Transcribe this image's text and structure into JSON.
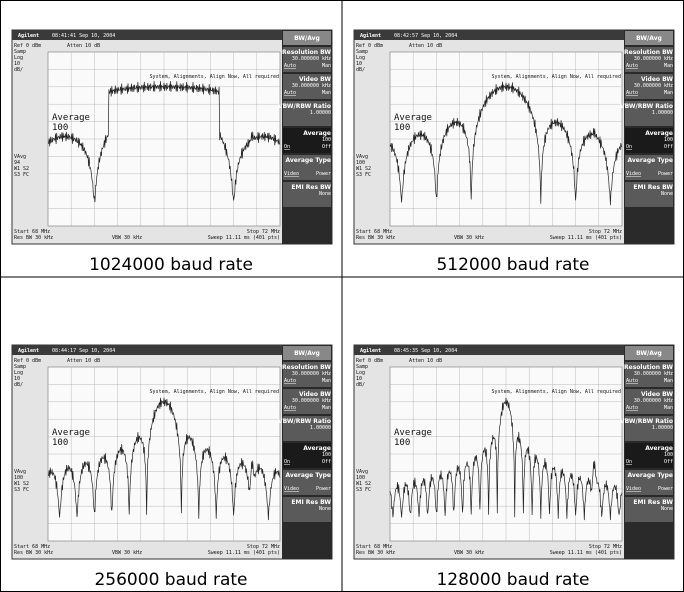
{
  "screen": {
    "brand": "Agilent",
    "ref": "Ref 0 dBm",
    "atten": "Atten 10 dB",
    "left_labels": [
      "Samp",
      "Log",
      "10",
      "dB/"
    ],
    "message": "System, Alignments, Align Now, All required",
    "marker": "Average",
    "marker_count": "100",
    "vavg_label": "VAvg",
    "trace_labels": [
      "W1 S2",
      "S3 FC"
    ],
    "start": "Start 68 MHz",
    "stop": "Stop 72 MHz",
    "res_bw": "Res BW 30 kHz",
    "vbw": "VBW 30 kHz",
    "sweep": "Sweep 11.11 ms (401 pts)",
    "menu": {
      "title": "BW/Avg",
      "items": [
        {
          "label": "Resolution BW",
          "value": "30.000000 kHz",
          "options": [
            "Auto",
            "Man"
          ]
        },
        {
          "label": "Video BW",
          "value": "30.000000 kHz",
          "options": [
            "Auto",
            "Man"
          ]
        },
        {
          "label": "VBW/RBW Ratio",
          "value": "1.00000"
        },
        {
          "label": "Average",
          "value": "100",
          "options": [
            "On",
            "Off"
          ]
        },
        {
          "label": "Average Type",
          "options": [
            "Video",
            "Power"
          ]
        },
        {
          "label": "EMI Res BW",
          "value": "None"
        }
      ]
    }
  },
  "panels": [
    {
      "timestamp": "08:41:41 Sep 10, 2004",
      "vavg": "94",
      "caption": "1024000 baud rate"
    },
    {
      "timestamp": "08:42:57 Sep 10, 2004",
      "vavg": "100",
      "caption": "512000 baud rate"
    },
    {
      "timestamp": "08:44:17 Sep 10, 2004",
      "vavg": "100",
      "caption": "256000 baud rate"
    },
    {
      "timestamp": "08:45:35 Sep 10, 2004",
      "vavg": "100",
      "caption": "128000 baud rate"
    }
  ]
}
